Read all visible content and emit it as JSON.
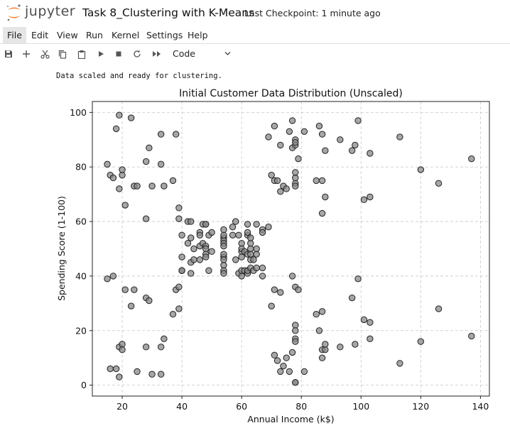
{
  "header": {
    "brand": "jupyter",
    "notebook_title": "Task 8_Clustering with K-Means",
    "checkpoint": "Last Checkpoint: 1 minute ago"
  },
  "menu": [
    "File",
    "Edit",
    "View",
    "Run",
    "Kernel",
    "Settings",
    "Help"
  ],
  "toolbar": {
    "icons": [
      "save-icon",
      "add-icon",
      "cut-icon",
      "copy-icon",
      "paste-icon",
      "run-icon",
      "stop-icon",
      "restart-icon",
      "run-all-icon"
    ],
    "cell_type": "Code"
  },
  "output": {
    "text": "Data scaled and ready for clustering."
  },
  "colors": {
    "point_fill": "#888888",
    "point_edge": "#222222",
    "logo_orange": "#f37726"
  },
  "chart_data": {
    "type": "scatter",
    "title": "Initial Customer Data Distribution (Unscaled)",
    "xlabel": "Annual Income (k$)",
    "ylabel": "Spending Score (1-100)",
    "xlim": [
      10,
      143
    ],
    "ylim": [
      -4,
      104
    ],
    "xticks": [
      "20",
      "40",
      "60",
      "80",
      "100",
      "120",
      "140"
    ],
    "yticks": [
      "0",
      "20",
      "40",
      "60",
      "80",
      "100"
    ],
    "grid": true,
    "x": [
      15,
      15,
      16,
      16,
      17,
      17,
      18,
      18,
      19,
      19,
      19,
      19,
      20,
      20,
      20,
      20,
      21,
      21,
      23,
      23,
      24,
      24,
      25,
      25,
      28,
      28,
      28,
      28,
      29,
      29,
      30,
      30,
      33,
      33,
      33,
      33,
      34,
      34,
      37,
      37,
      38,
      38,
      39,
      39,
      39,
      39,
      40,
      40,
      40,
      40,
      42,
      42,
      43,
      43,
      43,
      43,
      44,
      44,
      46,
      46,
      46,
      46,
      47,
      47,
      48,
      48,
      48,
      48,
      48,
      48,
      49,
      49,
      50,
      50,
      54,
      54,
      54,
      54,
      54,
      54,
      54,
      54,
      54,
      54,
      54,
      54,
      57,
      57,
      58,
      58,
      59,
      59,
      60,
      60,
      60,
      60,
      60,
      60,
      61,
      61,
      62,
      62,
      62,
      62,
      62,
      62,
      63,
      63,
      63,
      63,
      63,
      63,
      64,
      64,
      65,
      65,
      65,
      65,
      67,
      67,
      67,
      67,
      69,
      69,
      70,
      70,
      71,
      71,
      71,
      71,
      72,
      72,
      73,
      73,
      73,
      73,
      74,
      74,
      75,
      75,
      76,
      76,
      77,
      77,
      77,
      77,
      78,
      78,
      78,
      78,
      78,
      78,
      78,
      78,
      78,
      78,
      78,
      78,
      78,
      78,
      79,
      79,
      81,
      81,
      85,
      85,
      86,
      86,
      87,
      87,
      87,
      87,
      87,
      87,
      88,
      88,
      88,
      88,
      93,
      93,
      97,
      97,
      98,
      98,
      99,
      99,
      101,
      101,
      103,
      103,
      103,
      103,
      113,
      113,
      120,
      120,
      126,
      126,
      137,
      137
    ],
    "y": [
      39,
      81,
      6,
      77,
      40,
      76,
      6,
      94,
      3,
      72,
      14,
      99,
      15,
      77,
      13,
      79,
      35,
      66,
      29,
      98,
      35,
      73,
      5,
      73,
      14,
      82,
      32,
      61,
      31,
      87,
      4,
      73,
      4,
      92,
      14,
      81,
      17,
      73,
      26,
      75,
      35,
      92,
      36,
      61,
      28,
      65,
      55,
      47,
      42,
      42,
      52,
      60,
      54,
      60,
      45,
      41,
      50,
      46,
      51,
      46,
      56,
      55,
      52,
      59,
      51,
      59,
      50,
      48,
      59,
      47,
      55,
      42,
      49,
      56,
      47,
      54,
      53,
      48,
      52,
      42,
      51,
      55,
      41,
      44,
      57,
      46,
      58,
      55,
      60,
      46,
      55,
      41,
      49,
      40,
      42,
      52,
      47,
      50,
      42,
      49,
      41,
      48,
      59,
      55,
      56,
      42,
      50,
      46,
      43,
      48,
      52,
      54,
      42,
      46,
      48,
      50,
      43,
      59,
      43,
      57,
      56,
      40,
      58,
      91,
      29,
      77,
      35,
      95,
      11,
      75,
      9,
      75,
      34,
      71,
      5,
      88,
      7,
      73,
      10,
      72,
      5,
      93,
      40,
      87,
      12,
      97,
      36,
      74,
      22,
      90,
      17,
      88,
      20,
      76,
      16,
      89,
      1,
      78,
      1,
      73,
      35,
      83,
      5,
      93,
      26,
      75,
      20,
      95,
      27,
      63,
      13,
      75,
      10,
      92,
      13,
      86,
      15,
      69,
      14,
      90,
      32,
      86,
      15,
      88,
      39,
      97,
      24,
      68,
      17,
      85,
      23,
      69,
      8,
      91,
      16,
      79,
      28,
      74,
      18,
      83
    ]
  }
}
